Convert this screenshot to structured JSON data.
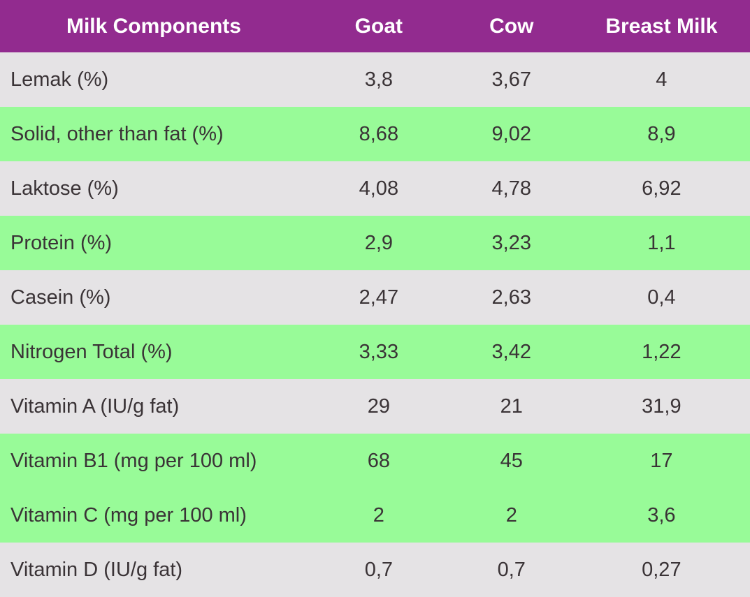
{
  "table": {
    "columns": [
      "Milk Components",
      "Goat",
      "Cow",
      "Breast Milk"
    ],
    "rows": [
      {
        "label": "Lemak (%)",
        "goat": "3,8",
        "cow": "3,67",
        "breast": "4"
      },
      {
        "label": "Solid, other than fat (%)",
        "goat": "8,68",
        "cow": "9,02",
        "breast": "8,9"
      },
      {
        "label": "Laktose (%)",
        "goat": "4,08",
        "cow": "4,78",
        "breast": "6,92"
      },
      {
        "label": "Protein (%)",
        "goat": "2,9",
        "cow": "3,23",
        "breast": "1,1"
      },
      {
        "label": "Casein (%)",
        "goat": "2,47",
        "cow": "2,63",
        "breast": "0,4"
      },
      {
        "label": "Nitrogen Total (%)",
        "goat": "3,33",
        "cow": "3,42",
        "breast": "1,22"
      },
      {
        "label": "Vitamin A (IU/g fat)",
        "goat": "29",
        "cow": "21",
        "breast": "31,9"
      },
      {
        "label": "Vitamin B1 (mg per 100 ml)",
        "goat": "68",
        "cow": "45",
        "breast": "17"
      },
      {
        "label": "Vitamin C (mg per 100 ml)",
        "goat": "2",
        "cow": "2",
        "breast": "3,6"
      },
      {
        "label": "Vitamin D (IU/g fat)",
        "goat": "0,7",
        "cow": "0,7",
        "breast": "0,27"
      }
    ]
  },
  "colors": {
    "header_background": "#922b8f",
    "header_text": "#ffffff",
    "row_gray": "#e5e3e5",
    "row_green": "#98fb98",
    "body_text": "#3a3336"
  },
  "chart_data": {
    "type": "table",
    "title": "Milk Components",
    "columns": [
      "Milk Components",
      "Goat",
      "Cow",
      "Breast Milk"
    ],
    "rows": [
      [
        "Lemak (%)",
        "3,8",
        "3,67",
        "4"
      ],
      [
        "Solid, other than fat (%)",
        "8,68",
        "9,02",
        "8,9"
      ],
      [
        "Laktose (%)",
        "4,08",
        "4,78",
        "6,92"
      ],
      [
        "Protein (%)",
        "2,9",
        "3,23",
        "1,1"
      ],
      [
        "Casein (%)",
        "2,47",
        "2,63",
        "0,4"
      ],
      [
        "Nitrogen Total (%)",
        "3,33",
        "3,42",
        "1,22"
      ],
      [
        "Vitamin A (IU/g fat)",
        "29",
        "21",
        "31,9"
      ],
      [
        "Vitamin B1 (mg per 100 ml)",
        "68",
        "45",
        "17"
      ],
      [
        "Vitamin C (mg per 100 ml)",
        "2",
        "2",
        "3,6"
      ],
      [
        "Vitamin D (IU/g fat)",
        "0,7",
        "0,7",
        "0,27"
      ]
    ],
    "row_backgrounds": [
      "gray",
      "green",
      "gray",
      "green",
      "gray",
      "green",
      "gray",
      "green",
      "green",
      "gray"
    ],
    "decimal_separator": ",",
    "layout": {
      "header_style": "purple-band",
      "grid": false
    }
  }
}
